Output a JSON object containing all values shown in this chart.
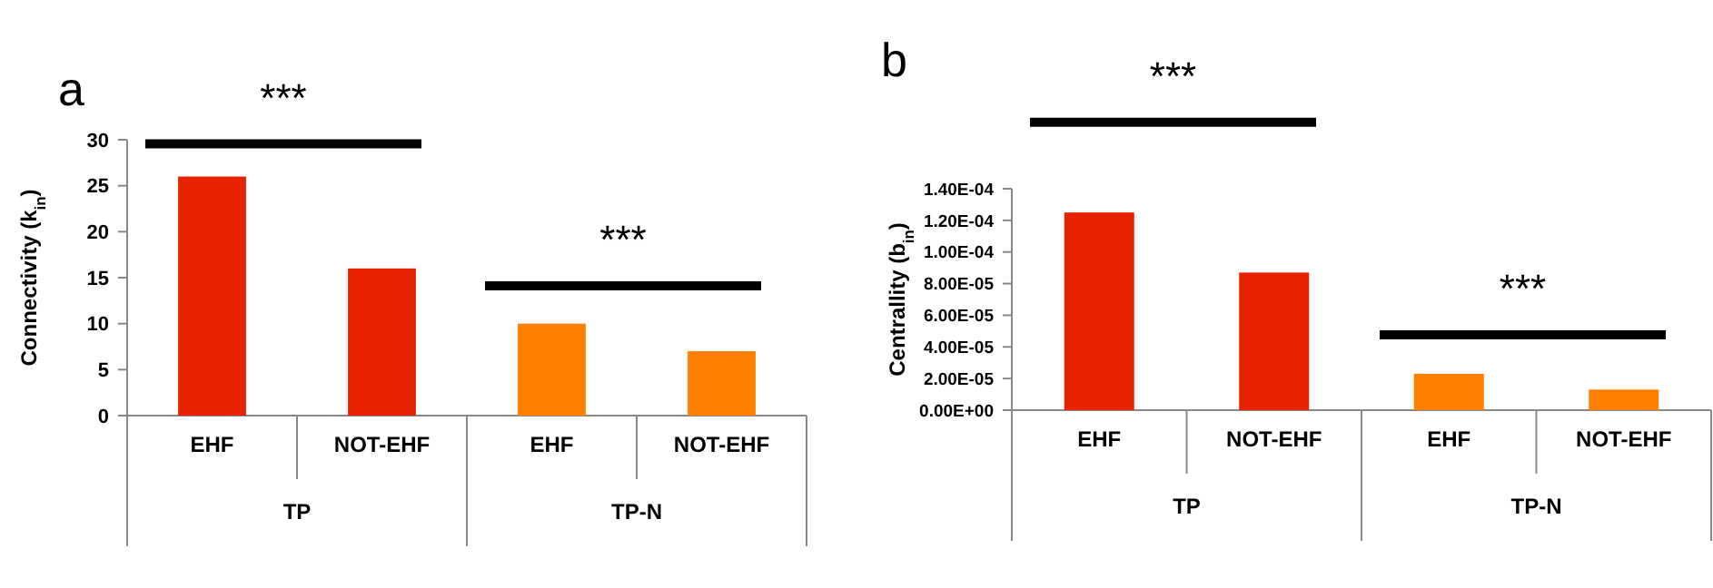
{
  "chart_data": [
    {
      "type": "bar",
      "title": "a",
      "ylabel": "Connectivity (k$_{in}$)",
      "categories": [
        "EHF",
        "NOT-EHF",
        "EHF",
        "NOT-EHF"
      ],
      "values": [
        26,
        16,
        10,
        7
      ],
      "colors": [
        "#e62200",
        "#e62200",
        "#ff7f00",
        "#ff7f00"
      ],
      "ylim": [
        0,
        30
      ],
      "yticks": [
        0,
        5,
        10,
        15,
        20,
        25,
        30
      ],
      "annotations": [
        "***",
        "***",
        "TP",
        "TP-N"
      ]
    },
    {
      "type": "bar",
      "title": "b",
      "ylabel": "Centrallity (b$_{in}$)",
      "categories": [
        "EHF",
        "NOT-EHF",
        "EHF",
        "NOT-EHF"
      ],
      "values": [
        0.000125,
        8.7e-05,
        2.3e-05,
        1.3e-05
      ],
      "colors": [
        "#e62200",
        "#e62200",
        "#ff7f00",
        "#ff7f00"
      ],
      "ylim": [
        0,
        0.00014
      ],
      "yticks": [
        {
          "value": 0,
          "label": "0.00E+00"
        },
        {
          "value": 2e-05,
          "label": "2.00E-05"
        },
        {
          "value": 4e-05,
          "label": "4.00E-05"
        },
        {
          "value": 6e-05,
          "label": "6.00E-05"
        },
        {
          "value": 8e-05,
          "label": "8.00E-05"
        },
        {
          "value": 0.0001,
          "label": "1.00E-04"
        },
        {
          "value": 0.00012,
          "label": "1.20E-04"
        },
        {
          "value": 0.00014,
          "label": "1.40E-04"
        }
      ],
      "annotations": [
        "***",
        "***",
        "TP",
        "TP-N"
      ]
    }
  ]
}
